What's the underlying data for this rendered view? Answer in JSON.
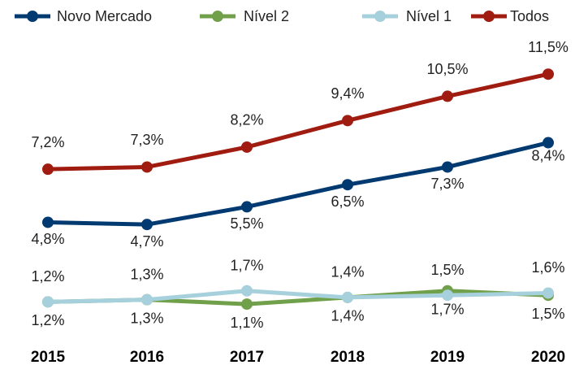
{
  "chart_data": {
    "type": "line",
    "categories": [
      "2015",
      "2016",
      "2017",
      "2018",
      "2019",
      "2020"
    ],
    "series": [
      {
        "name": "Novo Mercado",
        "color": "#003a70",
        "values": [
          4.8,
          4.7,
          5.5,
          6.5,
          7.3,
          8.4
        ],
        "value_labels": [
          "4,8%",
          "4,7%",
          "5,5%",
          "6,5%",
          "7,3%",
          "8,4%"
        ]
      },
      {
        "name": "Nível 2",
        "color": "#70a04a",
        "values": [
          1.2,
          1.3,
          1.1,
          1.4,
          1.7,
          1.5
        ],
        "value_labels": [
          "1,2%",
          "1,3%",
          "1,1%",
          "1,4%",
          "1,7%",
          "1,5%"
        ]
      },
      {
        "name": "Nível 1",
        "color": "#a6d0dc",
        "values": [
          1.2,
          1.3,
          1.7,
          1.4,
          1.5,
          1.6
        ],
        "value_labels": [
          "1,2%",
          "1,3%",
          "1,7%",
          "1,4%",
          "1,5%",
          "1,6%"
        ]
      },
      {
        "name": "Todos",
        "color": "#a01c10",
        "values": [
          7.2,
          7.3,
          8.2,
          9.4,
          10.5,
          11.5
        ],
        "value_labels": [
          "7,2%",
          "7,3%",
          "8,2%",
          "9,4%",
          "10,5%",
          "11,5%"
        ]
      }
    ]
  }
}
